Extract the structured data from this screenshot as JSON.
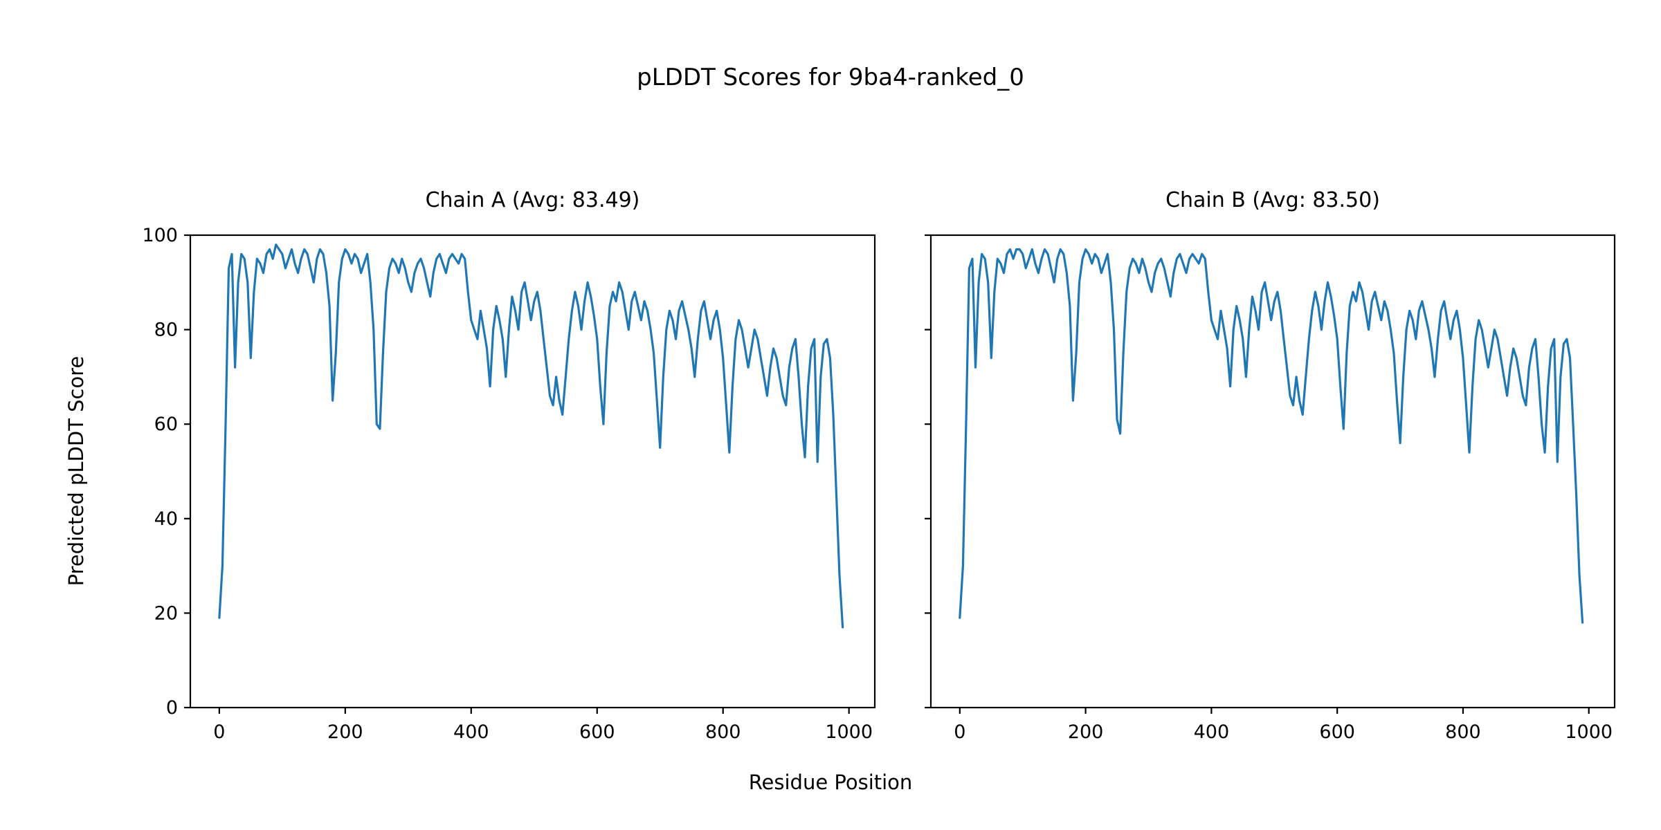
{
  "figure": {
    "title": "pLDDT Scores for 9ba4-ranked_0",
    "xlabel": "Residue Position",
    "ylabel": "Predicted pLDDT Score",
    "background_color": "#ffffff",
    "text_color": "#000000",
    "line_color": "#1f77b4"
  },
  "chart_data": [
    {
      "type": "line",
      "title": "Chain A (Avg: 83.49)",
      "avg_label_value": 83.49,
      "xlabel": "Residue Position",
      "ylabel": "Predicted pLDDT Score",
      "xlim": [
        -46,
        1041
      ],
      "ylim": [
        0,
        100
      ],
      "x_ticks": [
        0,
        200,
        400,
        600,
        800,
        1000
      ],
      "y_ticks": [
        0,
        20,
        40,
        60,
        80,
        100
      ],
      "show_y_tick_labels": true,
      "grid": false,
      "legend": "none",
      "series": [
        {
          "name": "Chain A pLDDT",
          "color": "#1f77b4",
          "x_start": 0,
          "x_step": 5,
          "values": [
            19,
            30,
            60,
            93,
            96,
            72,
            90,
            96,
            95,
            90,
            74,
            88,
            95,
            94,
            92,
            96,
            97,
            95,
            98,
            97,
            96,
            93,
            95,
            97,
            94,
            92,
            95,
            97,
            96,
            93,
            90,
            95,
            97,
            96,
            92,
            85,
            65,
            75,
            90,
            95,
            97,
            96,
            94,
            96,
            95,
            92,
            94,
            96,
            90,
            80,
            60,
            59,
            75,
            88,
            93,
            95,
            94,
            92,
            95,
            93,
            90,
            88,
            92,
            94,
            95,
            93,
            90,
            87,
            92,
            95,
            96,
            94,
            92,
            95,
            96,
            95,
            94,
            96,
            95,
            88,
            82,
            80,
            78,
            84,
            80,
            76,
            68,
            80,
            85,
            82,
            78,
            70,
            80,
            87,
            84,
            80,
            88,
            90,
            86,
            82,
            86,
            88,
            84,
            78,
            72,
            66,
            64,
            70,
            65,
            62,
            70,
            78,
            84,
            88,
            85,
            80,
            86,
            90,
            87,
            83,
            78,
            68,
            60,
            75,
            85,
            88,
            86,
            90,
            88,
            84,
            80,
            86,
            88,
            85,
            82,
            86,
            84,
            80,
            75,
            65,
            55,
            70,
            80,
            84,
            82,
            78,
            84,
            86,
            83,
            80,
            76,
            70,
            78,
            84,
            86,
            82,
            78,
            82,
            84,
            80,
            74,
            64,
            54,
            68,
            78,
            82,
            80,
            76,
            72,
            76,
            80,
            78,
            74,
            70,
            66,
            72,
            76,
            74,
            70,
            66,
            64,
            72,
            76,
            78,
            70,
            60,
            53,
            68,
            76,
            78,
            52,
            70,
            77,
            78,
            74,
            62,
            45,
            28,
            17
          ]
        }
      ]
    },
    {
      "type": "line",
      "title": "Chain B (Avg: 83.50)",
      "avg_label_value": 83.5,
      "xlabel": "Residue Position",
      "ylabel": "Predicted pLDDT Score",
      "xlim": [
        -46,
        1041
      ],
      "ylim": [
        0,
        100
      ],
      "x_ticks": [
        0,
        200,
        400,
        600,
        800,
        1000
      ],
      "y_ticks": [
        0,
        20,
        40,
        60,
        80,
        100
      ],
      "show_y_tick_labels": false,
      "grid": false,
      "legend": "none",
      "series": [
        {
          "name": "Chain B pLDDT",
          "color": "#1f77b4",
          "x_start": 0,
          "x_step": 5,
          "values": [
            19,
            30,
            60,
            93,
            95,
            72,
            90,
            96,
            95,
            90,
            74,
            88,
            95,
            94,
            92,
            96,
            97,
            95,
            97,
            97,
            96,
            93,
            95,
            97,
            94,
            92,
            95,
            97,
            96,
            93,
            90,
            95,
            97,
            96,
            92,
            85,
            65,
            75,
            90,
            95,
            97,
            96,
            94,
            96,
            95,
            92,
            94,
            96,
            90,
            80,
            61,
            58,
            75,
            88,
            93,
            95,
            94,
            92,
            95,
            93,
            90,
            88,
            92,
            94,
            95,
            93,
            90,
            87,
            92,
            95,
            96,
            94,
            92,
            95,
            96,
            95,
            94,
            96,
            95,
            88,
            82,
            80,
            78,
            84,
            80,
            76,
            68,
            80,
            85,
            82,
            78,
            70,
            80,
            87,
            84,
            80,
            88,
            90,
            86,
            82,
            86,
            88,
            84,
            78,
            72,
            66,
            64,
            70,
            65,
            62,
            70,
            78,
            84,
            88,
            85,
            80,
            86,
            90,
            87,
            83,
            78,
            68,
            59,
            75,
            85,
            88,
            86,
            90,
            88,
            84,
            80,
            86,
            88,
            85,
            82,
            86,
            84,
            80,
            75,
            65,
            56,
            70,
            80,
            84,
            82,
            78,
            84,
            86,
            83,
            80,
            76,
            70,
            78,
            84,
            86,
            82,
            78,
            82,
            84,
            80,
            74,
            64,
            54,
            68,
            78,
            82,
            80,
            76,
            72,
            76,
            80,
            78,
            74,
            70,
            66,
            72,
            76,
            74,
            70,
            66,
            64,
            72,
            76,
            78,
            70,
            60,
            54,
            68,
            76,
            78,
            52,
            70,
            77,
            78,
            74,
            60,
            45,
            28,
            18
          ]
        }
      ]
    }
  ]
}
